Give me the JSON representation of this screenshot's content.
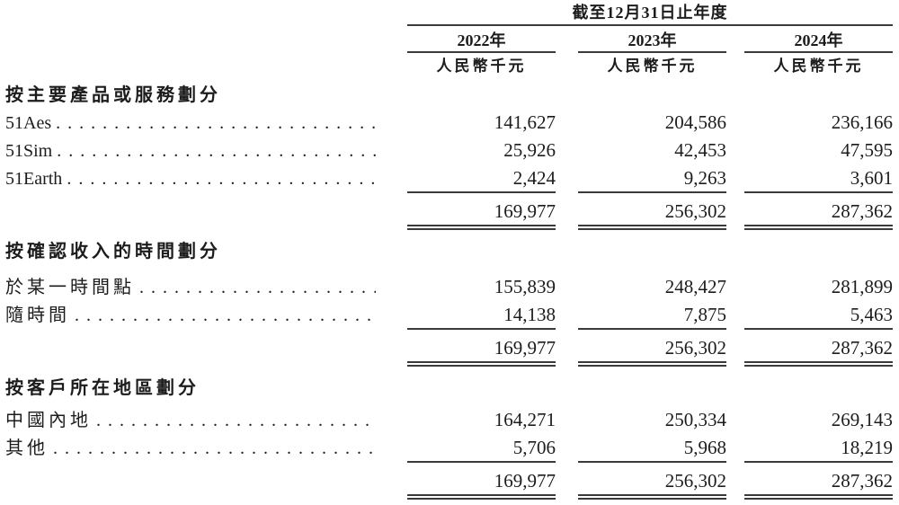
{
  "table": {
    "period_header": "截至12月31日止年度",
    "columns": [
      {
        "year": "2022年",
        "unit": "人民幣千元"
      },
      {
        "year": "2023年",
        "unit": "人民幣千元"
      },
      {
        "year": "2024年",
        "unit": "人民幣千元"
      }
    ],
    "sections": [
      {
        "header": "按主要產品或服務劃分",
        "rows": [
          {
            "label": "51Aes",
            "values": [
              "141,627",
              "204,586",
              "236,166"
            ]
          },
          {
            "label": "51Sim",
            "values": [
              "25,926",
              "42,453",
              "47,595"
            ]
          },
          {
            "label": "51Earth",
            "values": [
              "2,424",
              "9,263",
              "3,601"
            ]
          }
        ],
        "total": [
          "169,977",
          "256,302",
          "287,362"
        ]
      },
      {
        "header": "按確認收入的時間劃分",
        "rows": [
          {
            "label": "於某一時間點",
            "values": [
              "155,839",
              "248,427",
              "281,899"
            ]
          },
          {
            "label": "隨時間",
            "values": [
              "14,138",
              "7,875",
              "5,463"
            ]
          }
        ],
        "total": [
          "169,977",
          "256,302",
          "287,362"
        ]
      },
      {
        "header": "按客戶所在地區劃分",
        "rows": [
          {
            "label": "中國內地",
            "values": [
              "164,271",
              "250,334",
              "269,143"
            ]
          },
          {
            "label": "其他",
            "values": [
              "5,706",
              "5,968",
              "18,219"
            ]
          }
        ],
        "total": [
          "169,977",
          "256,302",
          "287,362"
        ]
      }
    ]
  },
  "colors": {
    "text": "#1c1c1c",
    "rule": "#3a3a3a",
    "background": "#ffffff"
  }
}
